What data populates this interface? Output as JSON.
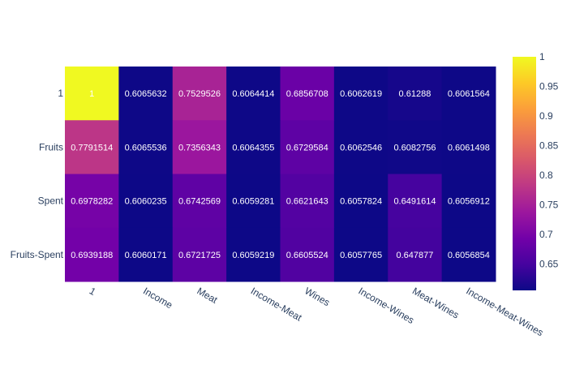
{
  "chart_data": {
    "type": "heatmap",
    "title": "",
    "xlabel": "",
    "ylabel": "",
    "x": [
      "1",
      "Income",
      "Meat",
      "Income-Meat",
      "Wines",
      "Income-Wines",
      "Meat-Wines",
      "Income-Meat-Wines"
    ],
    "y": [
      "1",
      "Fruits",
      "Spent",
      "Fruits-Spent"
    ],
    "z": [
      [
        1,
        0.6065632,
        0.7529526,
        0.6064414,
        0.6856708,
        0.6062619,
        0.61288,
        0.6061564
      ],
      [
        0.7791514,
        0.6065536,
        0.7356343,
        0.6064355,
        0.6729584,
        0.6062546,
        0.6082756,
        0.6061498
      ],
      [
        0.6978282,
        0.6060235,
        0.6742569,
        0.6059281,
        0.6621643,
        0.6057824,
        0.6491614,
        0.6056912
      ],
      [
        0.6939188,
        0.6060171,
        0.6721725,
        0.6059219,
        0.6605524,
        0.6057765,
        0.647877,
        0.6056854
      ]
    ],
    "text": [
      [
        "1",
        "0.6065632",
        "0.7529526",
        "0.6064414",
        "0.6856708",
        "0.6062619",
        "0.61288",
        "0.6061564"
      ],
      [
        "0.7791514",
        "0.6065536",
        "0.7356343",
        "0.6064355",
        "0.6729584",
        "0.6062546",
        "0.6082756",
        "0.6061498"
      ],
      [
        "0.6978282",
        "0.6060235",
        "0.6742569",
        "0.6059281",
        "0.6621643",
        "0.6057824",
        "0.6491614",
        "0.6056912"
      ],
      [
        "0.6939188",
        "0.6060171",
        "0.6721725",
        "0.6059219",
        "0.6605524",
        "0.6057765",
        "0.647877",
        "0.6056854"
      ]
    ],
    "zlim": [
      0.6056854,
      1
    ],
    "colorscale": "plasma",
    "colorbar": {
      "ticks": [
        0.65,
        0.7,
        0.75,
        0.8,
        0.85,
        0.9,
        0.95,
        1
      ],
      "tick_labels": [
        "0.65",
        "0.7",
        "0.75",
        "0.8",
        "0.85",
        "0.9",
        "0.95",
        "1"
      ]
    },
    "grid": false
  }
}
